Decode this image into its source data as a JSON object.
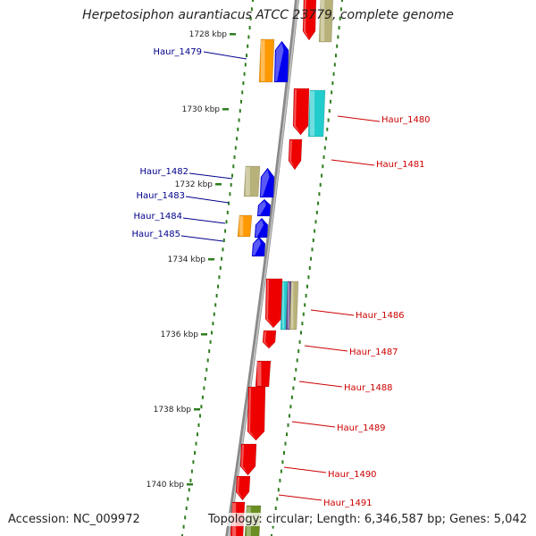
{
  "title": "Herpetosiphon aurantiacus ATCC 23779, complete genome",
  "accession": "Accession: NC_009972",
  "topology": "Topology: circular; Length: 6,346,587 bp; Genes: 5,042",
  "colors": {
    "backbone": "#8a8a8a",
    "tick": "#2e7d1f",
    "plus_label": "#00008b",
    "minus_label": "#cc0000",
    "red": "#ee0000",
    "blue": "#0000ee",
    "orange": "#ff9900",
    "khaki": "#b8b27a",
    "cyan": "#22cccc",
    "olive": "#6b8e23",
    "purple": "#6a4c93"
  },
  "scale_labels": [
    "1728 kbp",
    "1730 kbp",
    "1732 kbp",
    "1734 kbp",
    "1736 kbp",
    "1738 kbp",
    "1740 kbp"
  ],
  "gene_labels": {
    "left": [
      "Haur_1479",
      "Haur_1482",
      "Haur_1483",
      "Haur_1484",
      "Haur_1485"
    ],
    "right": [
      "Haur_1480",
      "Haur_1481",
      "Haur_1486",
      "Haur_1487",
      "Haur_1488",
      "Haur_1489",
      "Haur_1490",
      "Haur_1491"
    ]
  }
}
